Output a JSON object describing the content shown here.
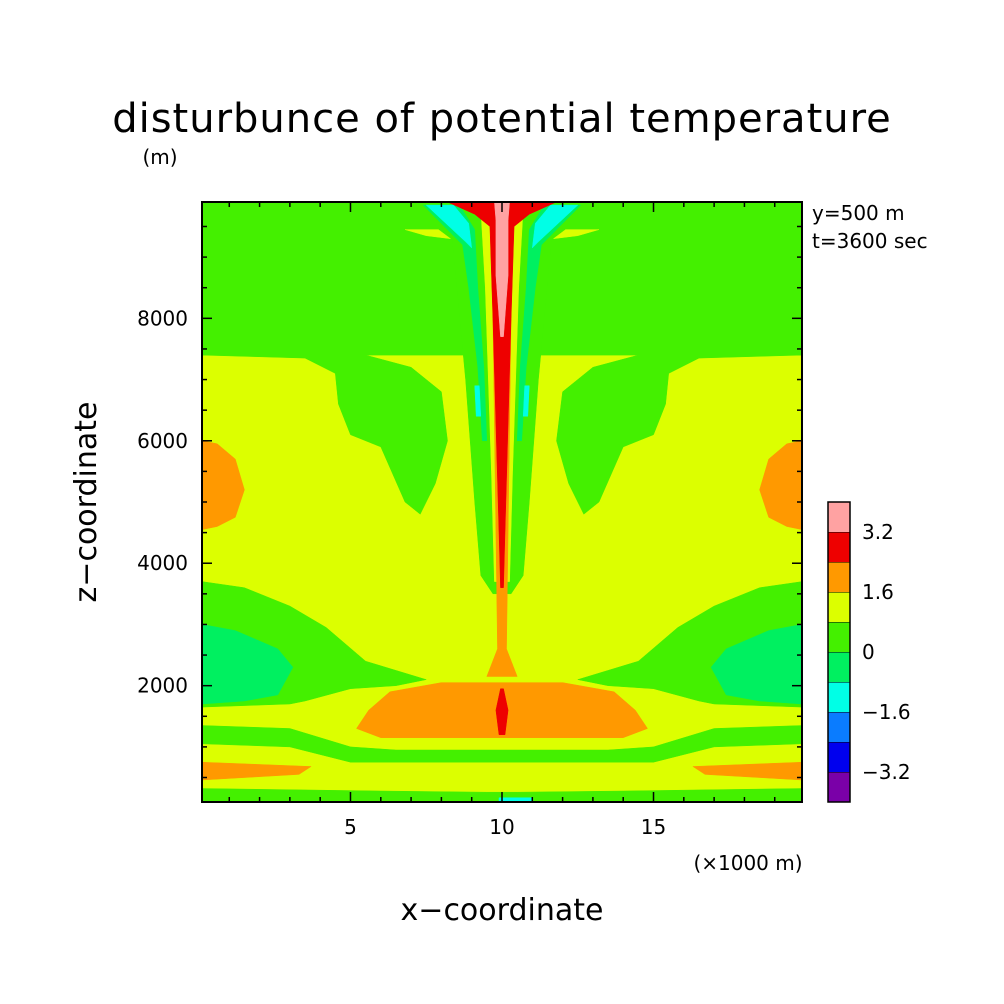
{
  "chart_data": {
    "type": "heatmap",
    "title": "disturbunce of potential temperature",
    "z_unit": "(m)",
    "x_unit": "(×1000 m)",
    "xlabel": "x−coordinate",
    "ylabel": "z−coordinate",
    "info_lines": [
      "y=500 m",
      "t=3600 sec"
    ],
    "xlim": [
      0.1,
      19.9
    ],
    "ylim": [
      100,
      9900
    ],
    "x_ticks": [
      {
        "value": 5,
        "label": "5"
      },
      {
        "value": 10,
        "label": "10"
      },
      {
        "value": 15,
        "label": "15"
      }
    ],
    "y_ticks": [
      {
        "value": 2000,
        "label": "2000"
      },
      {
        "value": 4000,
        "label": "4000"
      },
      {
        "value": 6000,
        "label": "6000"
      },
      {
        "value": 8000,
        "label": "8000"
      }
    ],
    "colorbar": {
      "levels": [
        {
          "from": -4.0,
          "to": -3.2,
          "color": "#7a00a8"
        },
        {
          "from": -3.2,
          "to": -2.4,
          "color": "#0000ee"
        },
        {
          "from": -2.4,
          "to": -1.6,
          "color": "#0a7cff"
        },
        {
          "from": -1.6,
          "to": -0.8,
          "color": "#00ffe6"
        },
        {
          "from": -0.8,
          "to": 0.0,
          "color": "#00f060"
        },
        {
          "from": 0.0,
          "to": 0.8,
          "color": "#44f000"
        },
        {
          "from": 0.8,
          "to": 1.6,
          "color": "#dcff00"
        },
        {
          "from": 1.6,
          "to": 2.4,
          "color": "#ff9900"
        },
        {
          "from": 2.4,
          "to": 3.2,
          "color": "#ee0000"
        },
        {
          "from": 3.2,
          "to": 4.0,
          "color": "#ffa2a2"
        }
      ],
      "tick_labels": [
        {
          "value": 3.2,
          "label": "3.2"
        },
        {
          "value": 1.6,
          "label": "1.6"
        },
        {
          "value": 0,
          "label": "0"
        },
        {
          "value": -1.6,
          "label": "−1.6"
        },
        {
          "value": -3.2,
          "label": "−3.2"
        }
      ]
    },
    "background_value": 1.0,
    "regions": [
      {
        "name": "upper-left-layer",
        "value": 0.4,
        "points": [
          [
            0.1,
            7500
          ],
          [
            3,
            7450
          ],
          [
            5.5,
            7400
          ],
          [
            7,
            7200
          ],
          [
            8,
            6800
          ],
          [
            8.2,
            6000
          ],
          [
            7.8,
            5300
          ],
          [
            7.3,
            4800
          ],
          [
            6.8,
            5000
          ],
          [
            6,
            5900
          ],
          [
            5,
            6100
          ],
          [
            4.6,
            6600
          ],
          [
            4.5,
            7100
          ],
          [
            3.5,
            7350
          ],
          [
            0.1,
            7400
          ]
        ]
      },
      {
        "name": "upper-right-layer",
        "value": 0.4,
        "points": [
          [
            19.9,
            7500
          ],
          [
            17,
            7450
          ],
          [
            14.5,
            7400
          ],
          [
            13,
            7200
          ],
          [
            12,
            6800
          ],
          [
            11.8,
            6000
          ],
          [
            12.2,
            5300
          ],
          [
            12.7,
            4800
          ],
          [
            13.2,
            5000
          ],
          [
            14,
            5900
          ],
          [
            15,
            6100
          ],
          [
            15.4,
            6600
          ],
          [
            15.5,
            7100
          ],
          [
            16.5,
            7350
          ],
          [
            19.9,
            7400
          ]
        ]
      },
      {
        "name": "top-band",
        "value": 0.4,
        "points": [
          [
            0.1,
            9900
          ],
          [
            19.9,
            9900
          ],
          [
            19.9,
            7400
          ],
          [
            0.1,
            7400
          ]
        ]
      },
      {
        "name": "plume-outer",
        "value": 0.4,
        "points": [
          [
            8.3,
            9600
          ],
          [
            11.7,
            9600
          ],
          [
            11.2,
            7000
          ],
          [
            10.9,
            5000
          ],
          [
            10.7,
            3800
          ],
          [
            10.3,
            3500
          ],
          [
            9.7,
            3500
          ],
          [
            9.3,
            3800
          ],
          [
            9.1,
            5000
          ],
          [
            8.8,
            7000
          ]
        ]
      },
      {
        "name": "plume-neg-left",
        "value": -0.4,
        "points": [
          [
            7.4,
            9850
          ],
          [
            8.6,
            9850
          ],
          [
            9.1,
            9450
          ],
          [
            9.2,
            8500
          ],
          [
            9.4,
            7200
          ],
          [
            9.5,
            6000
          ],
          [
            9.35,
            6000
          ],
          [
            9.2,
            7200
          ],
          [
            8.9,
            8500
          ],
          [
            8.7,
            9200
          ]
        ]
      },
      {
        "name": "plume-neg-right",
        "value": -0.4,
        "points": [
          [
            12.6,
            9850
          ],
          [
            11.4,
            9850
          ],
          [
            10.9,
            9450
          ],
          [
            10.8,
            8500
          ],
          [
            10.6,
            7200
          ],
          [
            10.5,
            6000
          ],
          [
            10.65,
            6000
          ],
          [
            10.8,
            7200
          ],
          [
            11.1,
            8500
          ],
          [
            11.3,
            9200
          ]
        ]
      },
      {
        "name": "cyan-left-top",
        "value": -1.2,
        "points": [
          [
            7.5,
            9850
          ],
          [
            8.4,
            9850
          ],
          [
            8.9,
            9550
          ],
          [
            9.0,
            9150
          ],
          [
            8.8,
            9250
          ]
        ]
      },
      {
        "name": "cyan-right-top",
        "value": -1.2,
        "points": [
          [
            12.5,
            9850
          ],
          [
            11.6,
            9850
          ],
          [
            11.1,
            9550
          ],
          [
            11.0,
            9150
          ],
          [
            11.2,
            9250
          ]
        ]
      },
      {
        "name": "cyan-left-mid",
        "value": -1.2,
        "points": [
          [
            9.1,
            6900
          ],
          [
            9.25,
            6900
          ],
          [
            9.3,
            6400
          ],
          [
            9.15,
            6400
          ]
        ]
      },
      {
        "name": "cyan-right-mid",
        "value": -1.2,
        "points": [
          [
            10.9,
            6900
          ],
          [
            10.75,
            6900
          ],
          [
            10.7,
            6400
          ],
          [
            10.85,
            6400
          ]
        ]
      },
      {
        "name": "yellow-left-top",
        "value": 1.2,
        "points": [
          [
            6.8,
            9450
          ],
          [
            7.9,
            9450
          ],
          [
            8.3,
            9300
          ],
          [
            7.5,
            9350
          ]
        ]
      },
      {
        "name": "yellow-right-top",
        "value": 1.2,
        "points": [
          [
            13.2,
            9450
          ],
          [
            12.1,
            9450
          ],
          [
            11.7,
            9300
          ],
          [
            12.5,
            9350
          ]
        ]
      },
      {
        "name": "plume-core-yellow",
        "value": 1.2,
        "points": [
          [
            9.3,
            9800
          ],
          [
            10.7,
            9800
          ],
          [
            10.55,
            8500
          ],
          [
            10.35,
            5500
          ],
          [
            10.25,
            3700
          ],
          [
            9.75,
            3700
          ],
          [
            9.65,
            5500
          ],
          [
            9.45,
            8500
          ]
        ]
      },
      {
        "name": "plume-core-orange",
        "value": 2.0,
        "points": [
          [
            9.6,
            9880
          ],
          [
            10.4,
            9880
          ],
          [
            10.3,
            8000
          ],
          [
            10.2,
            4500
          ],
          [
            10.15,
            2600
          ],
          [
            10.5,
            2150
          ],
          [
            9.5,
            2150
          ],
          [
            9.85,
            2600
          ],
          [
            9.8,
            4500
          ],
          [
            9.7,
            8000
          ]
        ]
      },
      {
        "name": "plume-core-red",
        "value": 2.8,
        "points": [
          [
            8.2,
            9900
          ],
          [
            11.8,
            9900
          ],
          [
            10.9,
            9700
          ],
          [
            10.4,
            9500
          ],
          [
            10.3,
            8000
          ],
          [
            10.1,
            4500
          ],
          [
            10.05,
            3600
          ],
          [
            9.95,
            3600
          ],
          [
            9.9,
            4500
          ],
          [
            9.7,
            8000
          ],
          [
            9.6,
            9500
          ],
          [
            9.1,
            9700
          ]
        ]
      },
      {
        "name": "plume-core-pink",
        "value": 3.6,
        "points": [
          [
            9.75,
            9900
          ],
          [
            10.25,
            9900
          ],
          [
            10.2,
            9600
          ],
          [
            10.2,
            8700
          ],
          [
            10.05,
            7700
          ],
          [
            9.95,
            7700
          ],
          [
            9.8,
            8700
          ],
          [
            9.8,
            9600
          ]
        ]
      },
      {
        "name": "left-orange-blob",
        "value": 2.0,
        "points": [
          [
            0.1,
            6000
          ],
          [
            0.6,
            5950
          ],
          [
            1.2,
            5700
          ],
          [
            1.5,
            5200
          ],
          [
            1.2,
            4750
          ],
          [
            0.6,
            4600
          ],
          [
            0.1,
            4550
          ]
        ]
      },
      {
        "name": "right-orange-blob",
        "value": 2.0,
        "points": [
          [
            19.9,
            6000
          ],
          [
            19.4,
            5950
          ],
          [
            18.8,
            5700
          ],
          [
            18.5,
            5200
          ],
          [
            18.8,
            4750
          ],
          [
            19.4,
            4600
          ],
          [
            19.9,
            4550
          ]
        ]
      },
      {
        "name": "left-mid-green",
        "value": 0.4,
        "points": [
          [
            0.1,
            3700
          ],
          [
            1.5,
            3600
          ],
          [
            3,
            3300
          ],
          [
            4.2,
            2950
          ],
          [
            5.5,
            2400
          ],
          [
            6.5,
            2250
          ],
          [
            7.5,
            2100
          ],
          [
            6.5,
            2000
          ],
          [
            5,
            1950
          ],
          [
            3.5,
            1750
          ],
          [
            3,
            1700
          ],
          [
            0.1,
            1650
          ]
        ]
      },
      {
        "name": "right-mid-green",
        "value": 0.4,
        "points": [
          [
            19.9,
            3700
          ],
          [
            18.5,
            3600
          ],
          [
            17,
            3300
          ],
          [
            15.8,
            2950
          ],
          [
            14.5,
            2400
          ],
          [
            13.5,
            2250
          ],
          [
            12.5,
            2100
          ],
          [
            13.5,
            2000
          ],
          [
            15,
            1950
          ],
          [
            16.5,
            1750
          ],
          [
            17,
            1700
          ],
          [
            19.9,
            1650
          ]
        ]
      },
      {
        "name": "left-inner-green",
        "value": -0.4,
        "points": [
          [
            0.1,
            3000
          ],
          [
            1.2,
            2900
          ],
          [
            2.6,
            2600
          ],
          [
            3.1,
            2300
          ],
          [
            2.6,
            1850
          ],
          [
            1.5,
            1750
          ],
          [
            0.1,
            1700
          ]
        ]
      },
      {
        "name": "right-inner-green",
        "value": -0.4,
        "points": [
          [
            19.9,
            3000
          ],
          [
            18.8,
            2900
          ],
          [
            17.4,
            2600
          ],
          [
            16.9,
            2300
          ],
          [
            17.4,
            1850
          ],
          [
            18.5,
            1750
          ],
          [
            19.9,
            1700
          ]
        ]
      },
      {
        "name": "orange-band",
        "value": 2.0,
        "points": [
          [
            5.2,
            1300
          ],
          [
            5.6,
            1600
          ],
          [
            6.3,
            1900
          ],
          [
            8,
            2050
          ],
          [
            12,
            2050
          ],
          [
            13.7,
            1900
          ],
          [
            14.4,
            1600
          ],
          [
            14.8,
            1300
          ],
          [
            14,
            1150
          ],
          [
            6,
            1150
          ]
        ]
      },
      {
        "name": "orange-band-red",
        "value": 2.8,
        "points": [
          [
            9.8,
            1600
          ],
          [
            9.95,
            1950
          ],
          [
            10.05,
            1950
          ],
          [
            10.2,
            1600
          ],
          [
            10.1,
            1200
          ],
          [
            9.9,
            1200
          ]
        ]
      },
      {
        "name": "low-green-band",
        "value": 0.4,
        "points": [
          [
            0.1,
            1350
          ],
          [
            3,
            1300
          ],
          [
            5,
            1000
          ],
          [
            6.5,
            950
          ],
          [
            13.5,
            950
          ],
          [
            15,
            1000
          ],
          [
            17,
            1300
          ],
          [
            19.9,
            1350
          ],
          [
            19.9,
            1050
          ],
          [
            17,
            1000
          ],
          [
            15,
            750
          ],
          [
            5,
            750
          ],
          [
            3,
            1000
          ],
          [
            0.1,
            1050
          ]
        ]
      },
      {
        "name": "left-low-orange",
        "value": 2.0,
        "points": [
          [
            0.1,
            750
          ],
          [
            3.7,
            680
          ],
          [
            3.3,
            550
          ],
          [
            0.1,
            460
          ]
        ]
      },
      {
        "name": "right-low-orange",
        "value": 2.0,
        "points": [
          [
            19.9,
            750
          ],
          [
            16.3,
            680
          ],
          [
            16.7,
            550
          ],
          [
            19.9,
            460
          ]
        ]
      },
      {
        "name": "bottom-green",
        "value": 0.4,
        "points": [
          [
            0.1,
            320
          ],
          [
            6,
            280
          ],
          [
            9.5,
            260
          ],
          [
            10.5,
            260
          ],
          [
            14,
            280
          ],
          [
            19.9,
            320
          ],
          [
            19.9,
            100
          ],
          [
            0.1,
            100
          ]
        ]
      },
      {
        "name": "bottom-cyan",
        "value": -1.2,
        "points": [
          [
            9.9,
            170
          ],
          [
            11,
            170
          ],
          [
            11,
            100
          ],
          [
            9.9,
            100
          ]
        ]
      }
    ]
  }
}
